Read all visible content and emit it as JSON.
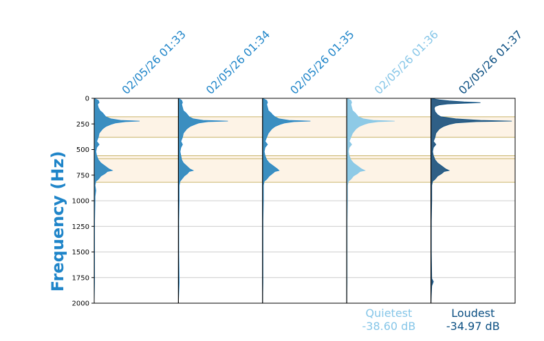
{
  "chart_data": {
    "type": "area",
    "ylabel": "Frequency (Hz)",
    "ylim": [
      0,
      2000
    ],
    "y_inverted": true,
    "yticks": [
      0,
      250,
      500,
      750,
      1000,
      1250,
      1500,
      1750,
      2000
    ],
    "grid": true,
    "bands_hz": [
      [
        180,
        380
      ],
      [
        560,
        820
      ]
    ],
    "band_lines_hz": [
      180,
      380,
      560,
      590,
      820
    ],
    "columns": [
      {
        "title": "02/05/26 01:33",
        "color": "#1f85c9",
        "fill": "#3b8ec0",
        "profile": [
          [
            0,
            0.0
          ],
          [
            20,
            0.05
          ],
          [
            40,
            0.06
          ],
          [
            60,
            0.04
          ],
          [
            90,
            0.05
          ],
          [
            120,
            0.07
          ],
          [
            140,
            0.1
          ],
          [
            160,
            0.12
          ],
          [
            180,
            0.14
          ],
          [
            200,
            0.2
          ],
          [
            215,
            0.32
          ],
          [
            222,
            0.55
          ],
          [
            228,
            0.38
          ],
          [
            240,
            0.26
          ],
          [
            255,
            0.2
          ],
          [
            275,
            0.14
          ],
          [
            300,
            0.1
          ],
          [
            340,
            0.06
          ],
          [
            380,
            0.05
          ],
          [
            420,
            0.03
          ],
          [
            450,
            0.06
          ],
          [
            480,
            0.03
          ],
          [
            520,
            0.02
          ],
          [
            560,
            0.03
          ],
          [
            600,
            0.05
          ],
          [
            630,
            0.08
          ],
          [
            660,
            0.13
          ],
          [
            690,
            0.18
          ],
          [
            705,
            0.22
          ],
          [
            715,
            0.16
          ],
          [
            735,
            0.13
          ],
          [
            760,
            0.08
          ],
          [
            790,
            0.05
          ],
          [
            810,
            0.02
          ],
          [
            850,
            0.01
          ],
          [
            900,
            0.02
          ],
          [
            960,
            0.01
          ],
          [
            1000,
            0.01
          ],
          [
            1200,
            0.005
          ],
          [
            1500,
            0.005
          ],
          [
            1800,
            0.005
          ],
          [
            2000,
            0.0
          ]
        ]
      },
      {
        "title": "02/05/26 01:34",
        "color": "#1f85c9",
        "fill": "#3b8ec0",
        "profile": [
          [
            0,
            0.0
          ],
          [
            20,
            0.04
          ],
          [
            40,
            0.05
          ],
          [
            60,
            0.04
          ],
          [
            90,
            0.05
          ],
          [
            120,
            0.06
          ],
          [
            140,
            0.09
          ],
          [
            160,
            0.11
          ],
          [
            180,
            0.13
          ],
          [
            200,
            0.18
          ],
          [
            215,
            0.3
          ],
          [
            222,
            0.6
          ],
          [
            228,
            0.36
          ],
          [
            240,
            0.25
          ],
          [
            255,
            0.2
          ],
          [
            275,
            0.14
          ],
          [
            300,
            0.1
          ],
          [
            340,
            0.06
          ],
          [
            380,
            0.05
          ],
          [
            420,
            0.03
          ],
          [
            450,
            0.05
          ],
          [
            480,
            0.03
          ],
          [
            520,
            0.02
          ],
          [
            560,
            0.03
          ],
          [
            600,
            0.04
          ],
          [
            630,
            0.06
          ],
          [
            660,
            0.1
          ],
          [
            690,
            0.14
          ],
          [
            705,
            0.18
          ],
          [
            715,
            0.13
          ],
          [
            735,
            0.11
          ],
          [
            760,
            0.07
          ],
          [
            790,
            0.04
          ],
          [
            810,
            0.02
          ],
          [
            850,
            0.01
          ],
          [
            900,
            0.01
          ],
          [
            960,
            0.01
          ],
          [
            1000,
            0.01
          ],
          [
            1200,
            0.005
          ],
          [
            1500,
            0.005
          ],
          [
            1800,
            0.01
          ],
          [
            2000,
            0.0
          ]
        ]
      },
      {
        "title": "02/05/26 01:35",
        "color": "#1f85c9",
        "fill": "#3b8ec0",
        "profile": [
          [
            0,
            0.0
          ],
          [
            20,
            0.05
          ],
          [
            40,
            0.06
          ],
          [
            60,
            0.05
          ],
          [
            90,
            0.06
          ],
          [
            120,
            0.07
          ],
          [
            140,
            0.1
          ],
          [
            160,
            0.12
          ],
          [
            180,
            0.15
          ],
          [
            200,
            0.2
          ],
          [
            215,
            0.32
          ],
          [
            222,
            0.58
          ],
          [
            228,
            0.38
          ],
          [
            240,
            0.27
          ],
          [
            255,
            0.21
          ],
          [
            275,
            0.15
          ],
          [
            300,
            0.11
          ],
          [
            340,
            0.07
          ],
          [
            380,
            0.05
          ],
          [
            420,
            0.03
          ],
          [
            450,
            0.06
          ],
          [
            480,
            0.03
          ],
          [
            520,
            0.02
          ],
          [
            560,
            0.03
          ],
          [
            600,
            0.05
          ],
          [
            630,
            0.08
          ],
          [
            660,
            0.13
          ],
          [
            690,
            0.18
          ],
          [
            705,
            0.2
          ],
          [
            715,
            0.15
          ],
          [
            735,
            0.12
          ],
          [
            760,
            0.08
          ],
          [
            790,
            0.05
          ],
          [
            810,
            0.02
          ],
          [
            850,
            0.01
          ],
          [
            900,
            0.01
          ],
          [
            960,
            0.01
          ],
          [
            1000,
            0.01
          ],
          [
            1200,
            0.005
          ],
          [
            1500,
            0.005
          ],
          [
            1800,
            0.005
          ],
          [
            2000,
            0.0
          ]
        ]
      },
      {
        "title": "02/05/26 01:36",
        "color": "#86c6e8",
        "fill": "#8ecae6",
        "profile": [
          [
            0,
            0.0
          ],
          [
            20,
            0.05
          ],
          [
            40,
            0.06
          ],
          [
            60,
            0.05
          ],
          [
            90,
            0.06
          ],
          [
            120,
            0.07
          ],
          [
            140,
            0.1
          ],
          [
            160,
            0.12
          ],
          [
            180,
            0.14
          ],
          [
            200,
            0.2
          ],
          [
            215,
            0.32
          ],
          [
            222,
            0.58
          ],
          [
            228,
            0.38
          ],
          [
            240,
            0.27
          ],
          [
            255,
            0.21
          ],
          [
            275,
            0.15
          ],
          [
            300,
            0.11
          ],
          [
            340,
            0.07
          ],
          [
            380,
            0.05
          ],
          [
            420,
            0.03
          ],
          [
            450,
            0.06
          ],
          [
            480,
            0.03
          ],
          [
            520,
            0.02
          ],
          [
            560,
            0.03
          ],
          [
            600,
            0.05
          ],
          [
            630,
            0.08
          ],
          [
            660,
            0.13
          ],
          [
            690,
            0.18
          ],
          [
            705,
            0.22
          ],
          [
            715,
            0.16
          ],
          [
            735,
            0.13
          ],
          [
            760,
            0.08
          ],
          [
            790,
            0.05
          ],
          [
            810,
            0.02
          ],
          [
            850,
            0.01
          ],
          [
            900,
            0.01
          ],
          [
            960,
            0.01
          ],
          [
            1000,
            0.01
          ],
          [
            1200,
            0.005
          ],
          [
            1500,
            0.005
          ],
          [
            1800,
            0.005
          ],
          [
            2000,
            0.0
          ]
        ]
      },
      {
        "title": "02/05/26 01:37",
        "color": "#0b4f82",
        "fill": "#2f5f86",
        "profile": [
          [
            0,
            0.0
          ],
          [
            15,
            0.1
          ],
          [
            25,
            0.22
          ],
          [
            35,
            0.4
          ],
          [
            42,
            0.6
          ],
          [
            48,
            0.4
          ],
          [
            55,
            0.2
          ],
          [
            65,
            0.1
          ],
          [
            80,
            0.05
          ],
          [
            100,
            0.04
          ],
          [
            130,
            0.05
          ],
          [
            160,
            0.08
          ],
          [
            180,
            0.12
          ],
          [
            200,
            0.3
          ],
          [
            215,
            0.6
          ],
          [
            222,
            0.98
          ],
          [
            228,
            0.55
          ],
          [
            240,
            0.3
          ],
          [
            255,
            0.22
          ],
          [
            275,
            0.15
          ],
          [
            300,
            0.1
          ],
          [
            340,
            0.06
          ],
          [
            380,
            0.05
          ],
          [
            420,
            0.03
          ],
          [
            450,
            0.06
          ],
          [
            480,
            0.03
          ],
          [
            520,
            0.02
          ],
          [
            560,
            0.03
          ],
          [
            600,
            0.05
          ],
          [
            630,
            0.08
          ],
          [
            660,
            0.13
          ],
          [
            690,
            0.18
          ],
          [
            705,
            0.22
          ],
          [
            715,
            0.16
          ],
          [
            735,
            0.13
          ],
          [
            760,
            0.08
          ],
          [
            790,
            0.05
          ],
          [
            810,
            0.02
          ],
          [
            850,
            0.01
          ],
          [
            900,
            0.01
          ],
          [
            960,
            0.01
          ],
          [
            1000,
            0.01
          ],
          [
            1200,
            0.005
          ],
          [
            1500,
            0.005
          ],
          [
            1760,
            0.01
          ],
          [
            1790,
            0.03
          ],
          [
            1810,
            0.02
          ],
          [
            1830,
            0.01
          ],
          [
            2000,
            0.0
          ]
        ]
      }
    ],
    "annotations": [
      {
        "label": "Quietest",
        "value": "-38.60 dB",
        "column": 3,
        "color": "#86c6e8"
      },
      {
        "label": "Loudest",
        "value": "-34.97 dB",
        "column": 4,
        "color": "#0b4f82"
      }
    ],
    "colors": {
      "ylabel": "#1f85c9",
      "band_fill": "#fdf3e6",
      "band_line": "#c9b46a",
      "grid": "#cccccc",
      "axis": "#000000"
    }
  }
}
